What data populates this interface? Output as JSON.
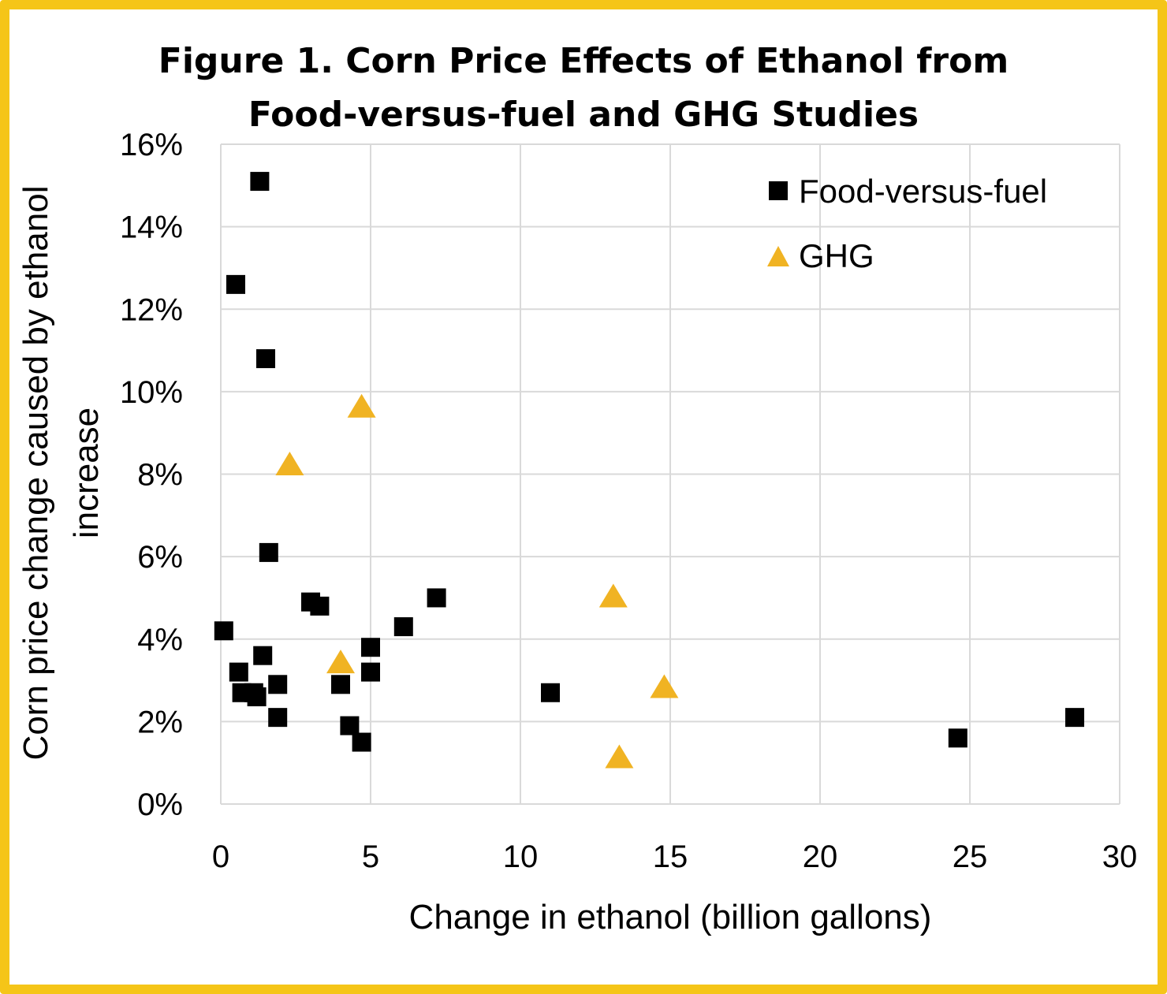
{
  "chart_data": {
    "type": "scatter",
    "title_line1": "Figure 1. Corn Price Effects of Ethanol from",
    "title_line2": "Food-versus-fuel and GHG Studies",
    "xlabel": "Change in ethanol (billion gallons)",
    "ylabel_line1": "Corn price change caused by ethanol",
    "ylabel_line2": "increase",
    "xlim": [
      0,
      30
    ],
    "ylim": [
      0,
      16
    ],
    "x_ticks": [
      "0",
      "5",
      "10",
      "15",
      "20",
      "25",
      "30"
    ],
    "y_ticks": [
      "0%",
      "2%",
      "4%",
      "6%",
      "8%",
      "10%",
      "12%",
      "14%",
      "16%"
    ],
    "grid": true,
    "legend_position": "top-right",
    "colors": {
      "frame": "#f5c518",
      "food": "#000000",
      "ghg": "#f0b323",
      "grid": "#d9d9d9"
    },
    "series": [
      {
        "name": "Food-versus-fuel",
        "marker": "square",
        "points": [
          [
            1.3,
            15.1
          ],
          [
            0.5,
            12.6
          ],
          [
            1.5,
            10.8
          ],
          [
            1.6,
            6.1
          ],
          [
            0.1,
            4.2
          ],
          [
            1.4,
            3.6
          ],
          [
            0.6,
            3.2
          ],
          [
            0.7,
            2.7
          ],
          [
            1.1,
            2.7
          ],
          [
            1.2,
            2.6
          ],
          [
            1.9,
            2.9
          ],
          [
            1.9,
            2.1
          ],
          [
            3.0,
            4.9
          ],
          [
            3.3,
            4.8
          ],
          [
            4.0,
            2.9
          ],
          [
            4.3,
            1.9
          ],
          [
            4.7,
            1.5
          ],
          [
            5.0,
            3.8
          ],
          [
            5.0,
            3.2
          ],
          [
            6.1,
            4.3
          ],
          [
            7.2,
            5.0
          ],
          [
            11.0,
            2.7
          ],
          [
            24.6,
            1.6
          ],
          [
            28.5,
            2.1
          ]
        ]
      },
      {
        "name": "GHG",
        "marker": "triangle",
        "points": [
          [
            4.7,
            9.6
          ],
          [
            2.3,
            8.2
          ],
          [
            4.0,
            3.4
          ],
          [
            13.1,
            5.0
          ],
          [
            14.8,
            2.8
          ],
          [
            13.3,
            1.1
          ]
        ]
      }
    ]
  }
}
